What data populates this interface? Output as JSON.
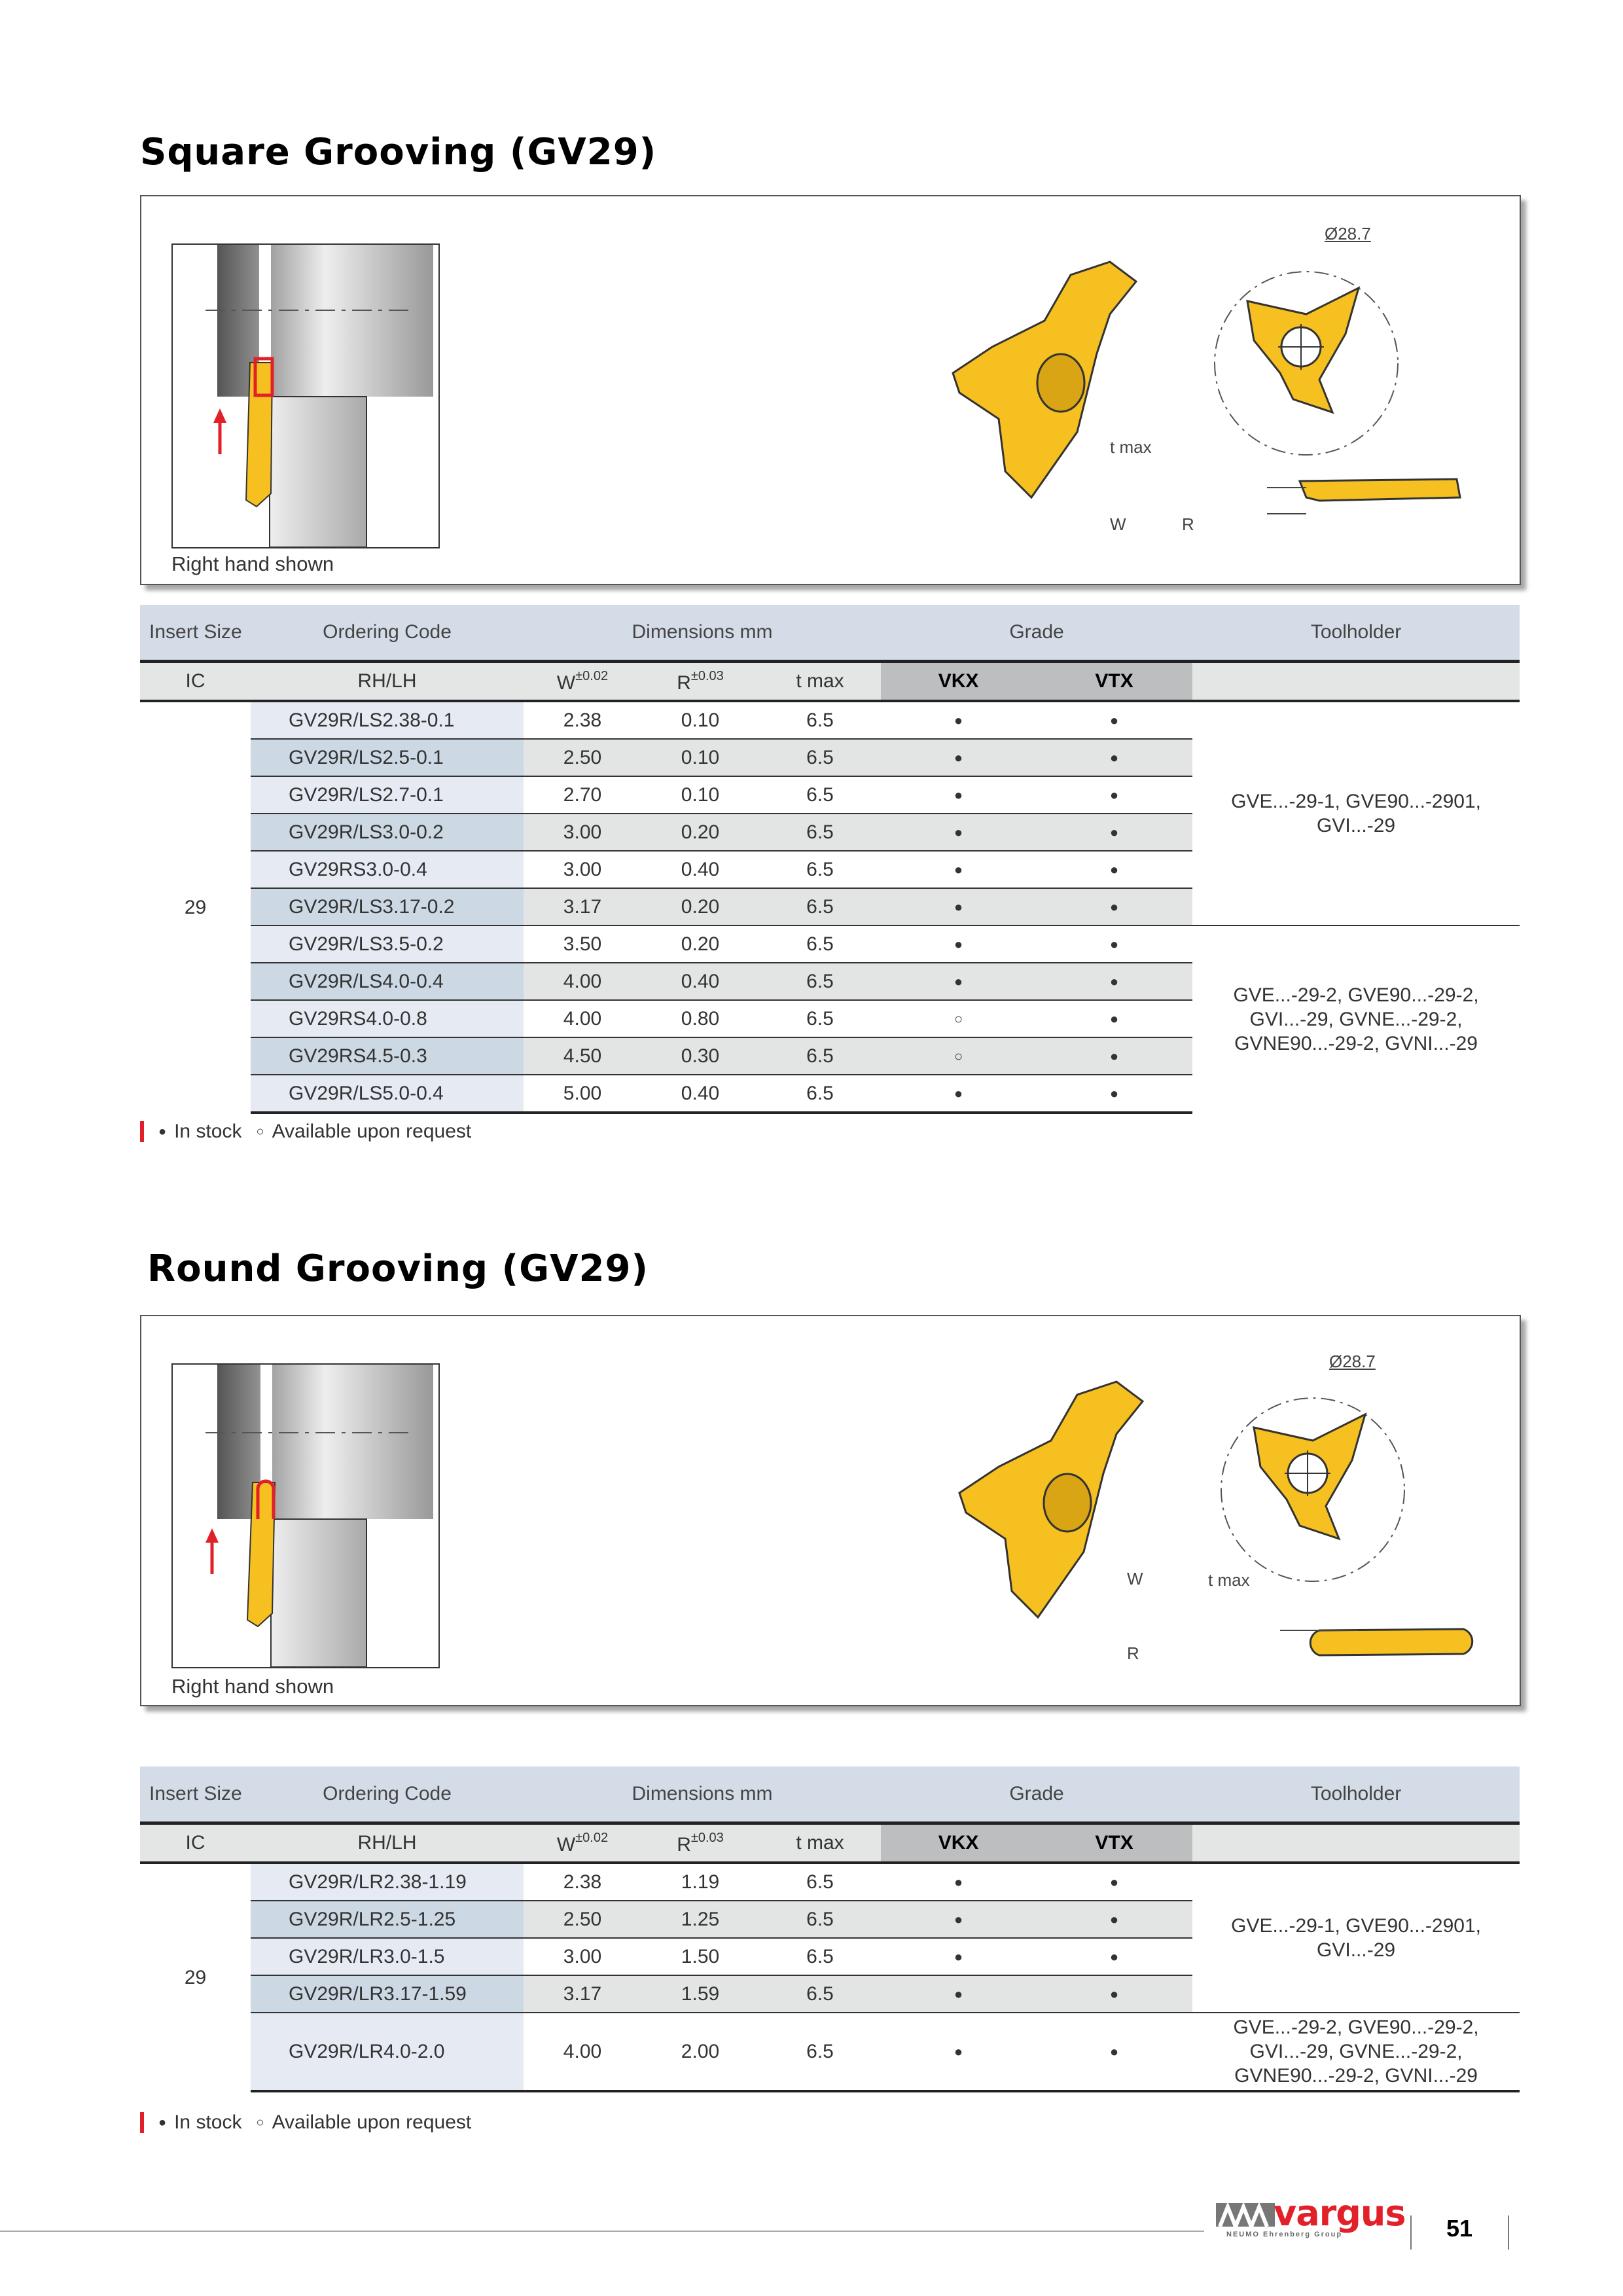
{
  "sections": [
    {
      "title": "Square Grooving (GV29)",
      "caption": "Right hand shown",
      "labels": {
        "diameter": "Ø28.7",
        "tmax": "t max",
        "w": "W",
        "r": "R"
      },
      "table": {
        "header": {
          "insert_size": "Insert Size",
          "ordering_code": "Ordering Code",
          "dimensions": "Dimensions mm",
          "grade": "Grade",
          "toolholder": "Toolholder"
        },
        "subheader": {
          "ic": "IC",
          "rhlh": "RH/LH",
          "w": "W",
          "w_tol": "±0.02",
          "r": "R",
          "r_tol": "±0.03",
          "tmax": "t max",
          "vkx": "VKX",
          "vtx": "VTX"
        },
        "ic": "29",
        "holders": [
          "GVE...-29-1, GVE90...-2901,\nGVI...-29",
          "GVE...-29-2, GVE90...-29-2,\nGVI...-29, GVNE...-29-2,\nGVNE90...-29-2, GVNI...-29"
        ],
        "rows": [
          {
            "code": "GV29R/LS2.38-0.1",
            "w": "2.38",
            "r": "0.10",
            "tmax": "6.5",
            "vkx": "●",
            "vtx": "●",
            "holder": 0
          },
          {
            "code": "GV29R/LS2.5-0.1",
            "w": "2.50",
            "r": "0.10",
            "tmax": "6.5",
            "vkx": "●",
            "vtx": "●",
            "holder": 0
          },
          {
            "code": "GV29R/LS2.7-0.1",
            "w": "2.70",
            "r": "0.10",
            "tmax": "6.5",
            "vkx": "●",
            "vtx": "●",
            "holder": 0
          },
          {
            "code": "GV29R/LS3.0-0.2",
            "w": "3.00",
            "r": "0.20",
            "tmax": "6.5",
            "vkx": "●",
            "vtx": "●",
            "holder": 0
          },
          {
            "code": "GV29RS3.0-0.4",
            "w": "3.00",
            "r": "0.40",
            "tmax": "6.5",
            "vkx": "●",
            "vtx": "●",
            "holder": 0
          },
          {
            "code": "GV29R/LS3.17-0.2",
            "w": "3.17",
            "r": "0.20",
            "tmax": "6.5",
            "vkx": "●",
            "vtx": "●",
            "holder": 0
          },
          {
            "code": "GV29R/LS3.5-0.2",
            "w": "3.50",
            "r": "0.20",
            "tmax": "6.5",
            "vkx": "●",
            "vtx": "●",
            "holder": 1
          },
          {
            "code": "GV29R/LS4.0-0.4",
            "w": "4.00",
            "r": "0.40",
            "tmax": "6.5",
            "vkx": "●",
            "vtx": "●",
            "holder": 1
          },
          {
            "code": "GV29RS4.0-0.8",
            "w": "4.00",
            "r": "0.80",
            "tmax": "6.5",
            "vkx": "○",
            "vtx": "●",
            "holder": 1
          },
          {
            "code": "GV29RS4.5-0.3",
            "w": "4.50",
            "r": "0.30",
            "tmax": "6.5",
            "vkx": "○",
            "vtx": "●",
            "holder": 1
          },
          {
            "code": "GV29R/LS5.0-0.4",
            "w": "5.00",
            "r": "0.40",
            "tmax": "6.5",
            "vkx": "●",
            "vtx": "●",
            "holder": 1
          }
        ]
      }
    },
    {
      "title": "Round Grooving (GV29)",
      "caption": "Right hand shown",
      "labels": {
        "diameter": "Ø28.7",
        "tmax": "t max",
        "w": "W",
        "r": "R"
      },
      "table": {
        "header": {
          "insert_size": "Insert Size",
          "ordering_code": "Ordering Code",
          "dimensions": "Dimensions mm",
          "grade": "Grade",
          "toolholder": "Toolholder"
        },
        "subheader": {
          "ic": "IC",
          "rhlh": "RH/LH",
          "w": "W",
          "w_tol": "±0.02",
          "r": "R",
          "r_tol": "±0.03",
          "tmax": "t max",
          "vkx": "VKX",
          "vtx": "VTX"
        },
        "ic": "29",
        "holders": [
          "GVE...-29-1, GVE90...-2901,\nGVI...-29",
          "GVE...-29-2, GVE90...-29-2,\nGVI...-29, GVNE...-29-2,\nGVNE90...-29-2, GVNI...-29"
        ],
        "rows": [
          {
            "code": "GV29R/LR2.38-1.19",
            "w": "2.38",
            "r": "1.19",
            "tmax": "6.5",
            "vkx": "●",
            "vtx": "●",
            "holder": 0
          },
          {
            "code": "GV29R/LR2.5-1.25",
            "w": "2.50",
            "r": "1.25",
            "tmax": "6.5",
            "vkx": "●",
            "vtx": "●",
            "holder": 0
          },
          {
            "code": "GV29R/LR3.0-1.5",
            "w": "3.00",
            "r": "1.50",
            "tmax": "6.5",
            "vkx": "●",
            "vtx": "●",
            "holder": 0
          },
          {
            "code": "GV29R/LR3.17-1.59",
            "w": "3.17",
            "r": "1.59",
            "tmax": "6.5",
            "vkx": "●",
            "vtx": "●",
            "holder": 0
          },
          {
            "code": "GV29R/LR4.0-2.0",
            "w": "4.00",
            "r": "2.00",
            "tmax": "6.5",
            "vkx": "●",
            "vtx": "●",
            "holder": 1
          }
        ]
      }
    }
  ],
  "legend": {
    "in_stock_symbol": "●",
    "in_stock": "In stock",
    "request_symbol": "○",
    "request": "Available upon request"
  },
  "footer": {
    "logo_text": "vargus",
    "logo_tagline": "NEUMO Ehrenberg Group",
    "page_number": "51"
  },
  "colors": {
    "insert_yellow": "#f5c020",
    "accent_red": "#e2202a",
    "header_blue": "#d4dde7"
  }
}
